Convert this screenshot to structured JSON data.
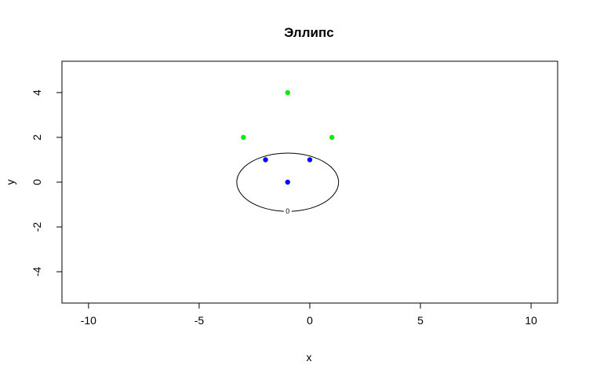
{
  "chart_data": {
    "type": "scatter",
    "title": "Эллипс",
    "xlabel": "x",
    "ylabel": "y",
    "xlim": [
      -11.2,
      11.2
    ],
    "ylim": [
      -5.4,
      5.4
    ],
    "xticks": [
      -10,
      -5,
      0,
      5,
      10
    ],
    "yticks": [
      -4,
      -2,
      0,
      2,
      4
    ],
    "xtick_labels": [
      "-10",
      "-5",
      "0",
      "5",
      "10"
    ],
    "ytick_labels": [
      "-4",
      "-2",
      "0",
      "2",
      "4"
    ],
    "grid": false,
    "ellipse": {
      "center": [
        -1,
        0
      ],
      "semi_axis_x": 2.3,
      "semi_axis_y": 1.3,
      "label": "0"
    },
    "series": [
      {
        "color": "#00ee00",
        "points": [
          [
            -1,
            4
          ],
          [
            -3,
            2
          ],
          [
            1,
            2
          ]
        ]
      },
      {
        "color": "#0000ff",
        "points": [
          [
            -1,
            0
          ],
          [
            -2,
            1
          ],
          [
            0,
            1
          ]
        ]
      }
    ]
  }
}
